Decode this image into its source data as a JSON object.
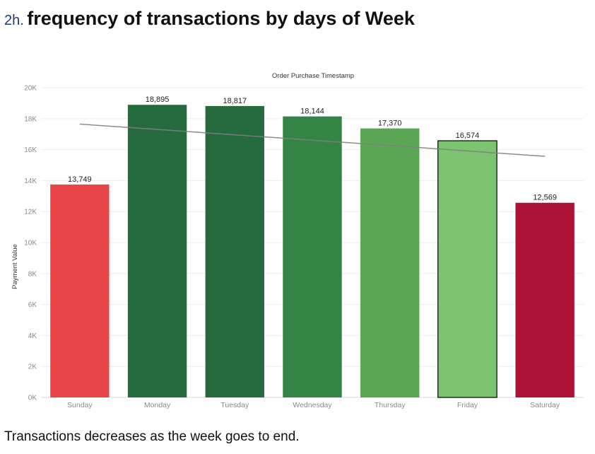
{
  "heading": {
    "number": "2h.",
    "title": "frequency of transactions by days of Week"
  },
  "caption": "Transactions decreases as the week goes to end.",
  "chart_data": {
    "type": "bar",
    "title": "Order Purchase Timestamp",
    "xlabel": "",
    "ylabel": "Payment Value",
    "categories": [
      "Sunday",
      "Monday",
      "Tuesday",
      "Wednesday",
      "Thursday",
      "Friday",
      "Saturday"
    ],
    "values": [
      13749,
      18895,
      18817,
      18144,
      17370,
      16574,
      12569
    ],
    "value_labels": [
      "13,749",
      "18,895",
      "18,817",
      "18,144",
      "17,370",
      "16,574",
      "12,569"
    ],
    "bar_colors": [
      "#e84646",
      "#256b3d",
      "#256b3d",
      "#338445",
      "#5ba655",
      "#7cc46f",
      "#ad1237"
    ],
    "highlighted_bar": "Friday",
    "ylim": [
      0,
      20000
    ],
    "y_ticks": [
      0,
      2000,
      4000,
      6000,
      8000,
      10000,
      12000,
      14000,
      16000,
      18000,
      20000
    ],
    "y_tick_labels": [
      "0K",
      "2K",
      "4K",
      "6K",
      "8K",
      "10K",
      "12K",
      "14K",
      "16K",
      "18K",
      "20K"
    ],
    "trend_line": {
      "start": 17650,
      "end": 15570,
      "color": "#808080"
    },
    "grid": true,
    "legend": "none"
  }
}
